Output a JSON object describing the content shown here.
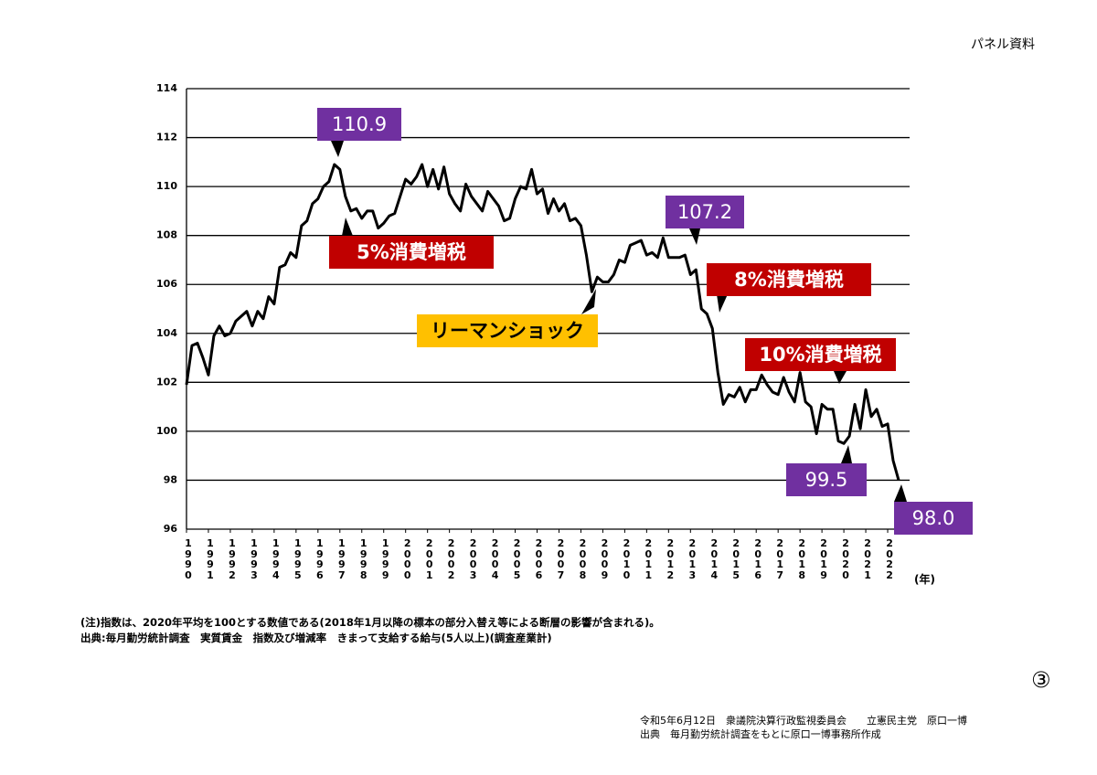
{
  "header": "パネル資料",
  "page_number": "③",
  "chart_data": {
    "type": "line",
    "x": [
      1990,
      1990.25,
      1990.5,
      1990.75,
      1991,
      1991.25,
      1991.5,
      1991.75,
      1992,
      1992.25,
      1992.5,
      1992.75,
      1993,
      1993.25,
      1993.5,
      1993.75,
      1994,
      1994.25,
      1994.5,
      1994.75,
      1995,
      1995.25,
      1995.5,
      1995.75,
      1996,
      1996.25,
      1996.5,
      1996.75,
      1997,
      1997.25,
      1997.5,
      1997.75,
      1998,
      1998.25,
      1998.5,
      1998.75,
      1999,
      1999.25,
      1999.5,
      1999.75,
      2000,
      2000.25,
      2000.5,
      2000.75,
      2001,
      2001.25,
      2001.5,
      2001.75,
      2002,
      2002.25,
      2002.5,
      2002.75,
      2003,
      2003.25,
      2003.5,
      2003.75,
      2004,
      2004.25,
      2004.5,
      2004.75,
      2005,
      2005.25,
      2005.5,
      2005.75,
      2006,
      2006.25,
      2006.5,
      2006.75,
      2007,
      2007.25,
      2007.5,
      2007.75,
      2008,
      2008.25,
      2008.5,
      2008.75,
      2009,
      2009.25,
      2009.5,
      2009.75,
      2010,
      2010.25,
      2010.5,
      2010.75,
      2011,
      2011.25,
      2011.5,
      2011.75,
      2012,
      2012.25,
      2012.5,
      2012.75,
      2013,
      2013.25,
      2013.5,
      2013.75,
      2014,
      2014.25,
      2014.5,
      2014.75,
      2015,
      2015.25,
      2015.5,
      2015.75,
      2016,
      2016.25,
      2016.5,
      2016.75,
      2017,
      2017.25,
      2017.5,
      2017.75,
      2018,
      2018.25,
      2018.5,
      2018.75,
      2019,
      2019.25,
      2019.5,
      2019.75,
      2020,
      2020.25,
      2020.5,
      2020.75,
      2021,
      2021.25,
      2021.5,
      2021.75,
      2022,
      2022.25,
      2022.5
    ],
    "series": [
      {
        "color": "#000000",
        "values": [
          101.9,
          103.5,
          103.6,
          103.0,
          102.3,
          103.9,
          104.3,
          103.9,
          104.0,
          104.5,
          104.7,
          104.9,
          104.3,
          104.9,
          104.6,
          105.5,
          105.2,
          106.7,
          106.8,
          107.3,
          107.1,
          108.4,
          108.6,
          109.3,
          109.5,
          110.0,
          110.2,
          110.9,
          110.7,
          109.6,
          109.0,
          109.1,
          108.7,
          109.0,
          109.0,
          108.3,
          108.5,
          108.8,
          108.9,
          109.6,
          110.3,
          110.1,
          110.4,
          110.9,
          110.0,
          110.7,
          109.9,
          110.8,
          109.7,
          109.3,
          109.0,
          110.1,
          109.6,
          109.3,
          109.0,
          109.8,
          109.5,
          109.2,
          108.6,
          108.7,
          109.5,
          110.0,
          109.9,
          110.7,
          109.7,
          109.9,
          108.9,
          109.5,
          109.0,
          109.3,
          108.6,
          108.7,
          108.4,
          107.2,
          105.7,
          106.3,
          106.1,
          106.1,
          106.4,
          107.0,
          106.9,
          107.6,
          107.7,
          107.8,
          107.2,
          107.3,
          107.1,
          107.9,
          107.1,
          107.1,
          107.1,
          107.2,
          106.4,
          106.6,
          105.0,
          104.8,
          104.2,
          102.4,
          101.1,
          101.5,
          101.4,
          101.8,
          101.2,
          101.7,
          101.7,
          102.3,
          101.9,
          101.6,
          101.5,
          102.2,
          101.6,
          101.2,
          102.4,
          101.2,
          101.0,
          99.9,
          101.1,
          100.9,
          100.9,
          99.6,
          99.5,
          99.8,
          101.1,
          100.1,
          101.7,
          100.6,
          100.9,
          100.2,
          100.3,
          98.8,
          98.0
        ]
      }
    ],
    "xlim": [
      1990,
      2023
    ],
    "xticks": [
      1990,
      1991,
      1992,
      1993,
      1994,
      1995,
      1996,
      1997,
      1998,
      1999,
      2000,
      2001,
      2002,
      2003,
      2004,
      2005,
      2006,
      2007,
      2008,
      2009,
      2010,
      2011,
      2012,
      2013,
      2014,
      2015,
      2016,
      2017,
      2018,
      2019,
      2020,
      2021,
      2022
    ],
    "x_label": "(年)",
    "ylim": [
      96,
      114
    ],
    "yticks": [
      96,
      98,
      100,
      102,
      104,
      106,
      108,
      110,
      112,
      114
    ],
    "grid": true,
    "annotations": [
      {
        "text": "110.9",
        "color": "#7030a0"
      },
      {
        "text": "5%消費増税",
        "color": "#c00000"
      },
      {
        "text": "リーマンショック",
        "color": "#ffc000"
      },
      {
        "text": "107.2",
        "color": "#7030a0"
      },
      {
        "text": "8%消費増税",
        "color": "#c00000"
      },
      {
        "text": "10%消費増税",
        "color": "#c00000"
      },
      {
        "text": "99.5",
        "color": "#7030a0"
      },
      {
        "text": "98.0",
        "color": "#7030a0"
      }
    ]
  },
  "notes": [
    "(注)指数は、2020年平均を100とする数値である(2018年1月以降の標本の部分入替え等による断層の影響が含まれる)。",
    "出典:毎月勤労統計調査　実質賃金　指数及び増減率　きまって支給する給与(5人以上)(調査産業計)"
  ],
  "footer": [
    "令和5年6月12日　衆議院決算行政監視委員会　　立憲民主党　原口一博",
    "出典　毎月勤労統計調査をもとに原口一博事務所作成"
  ]
}
